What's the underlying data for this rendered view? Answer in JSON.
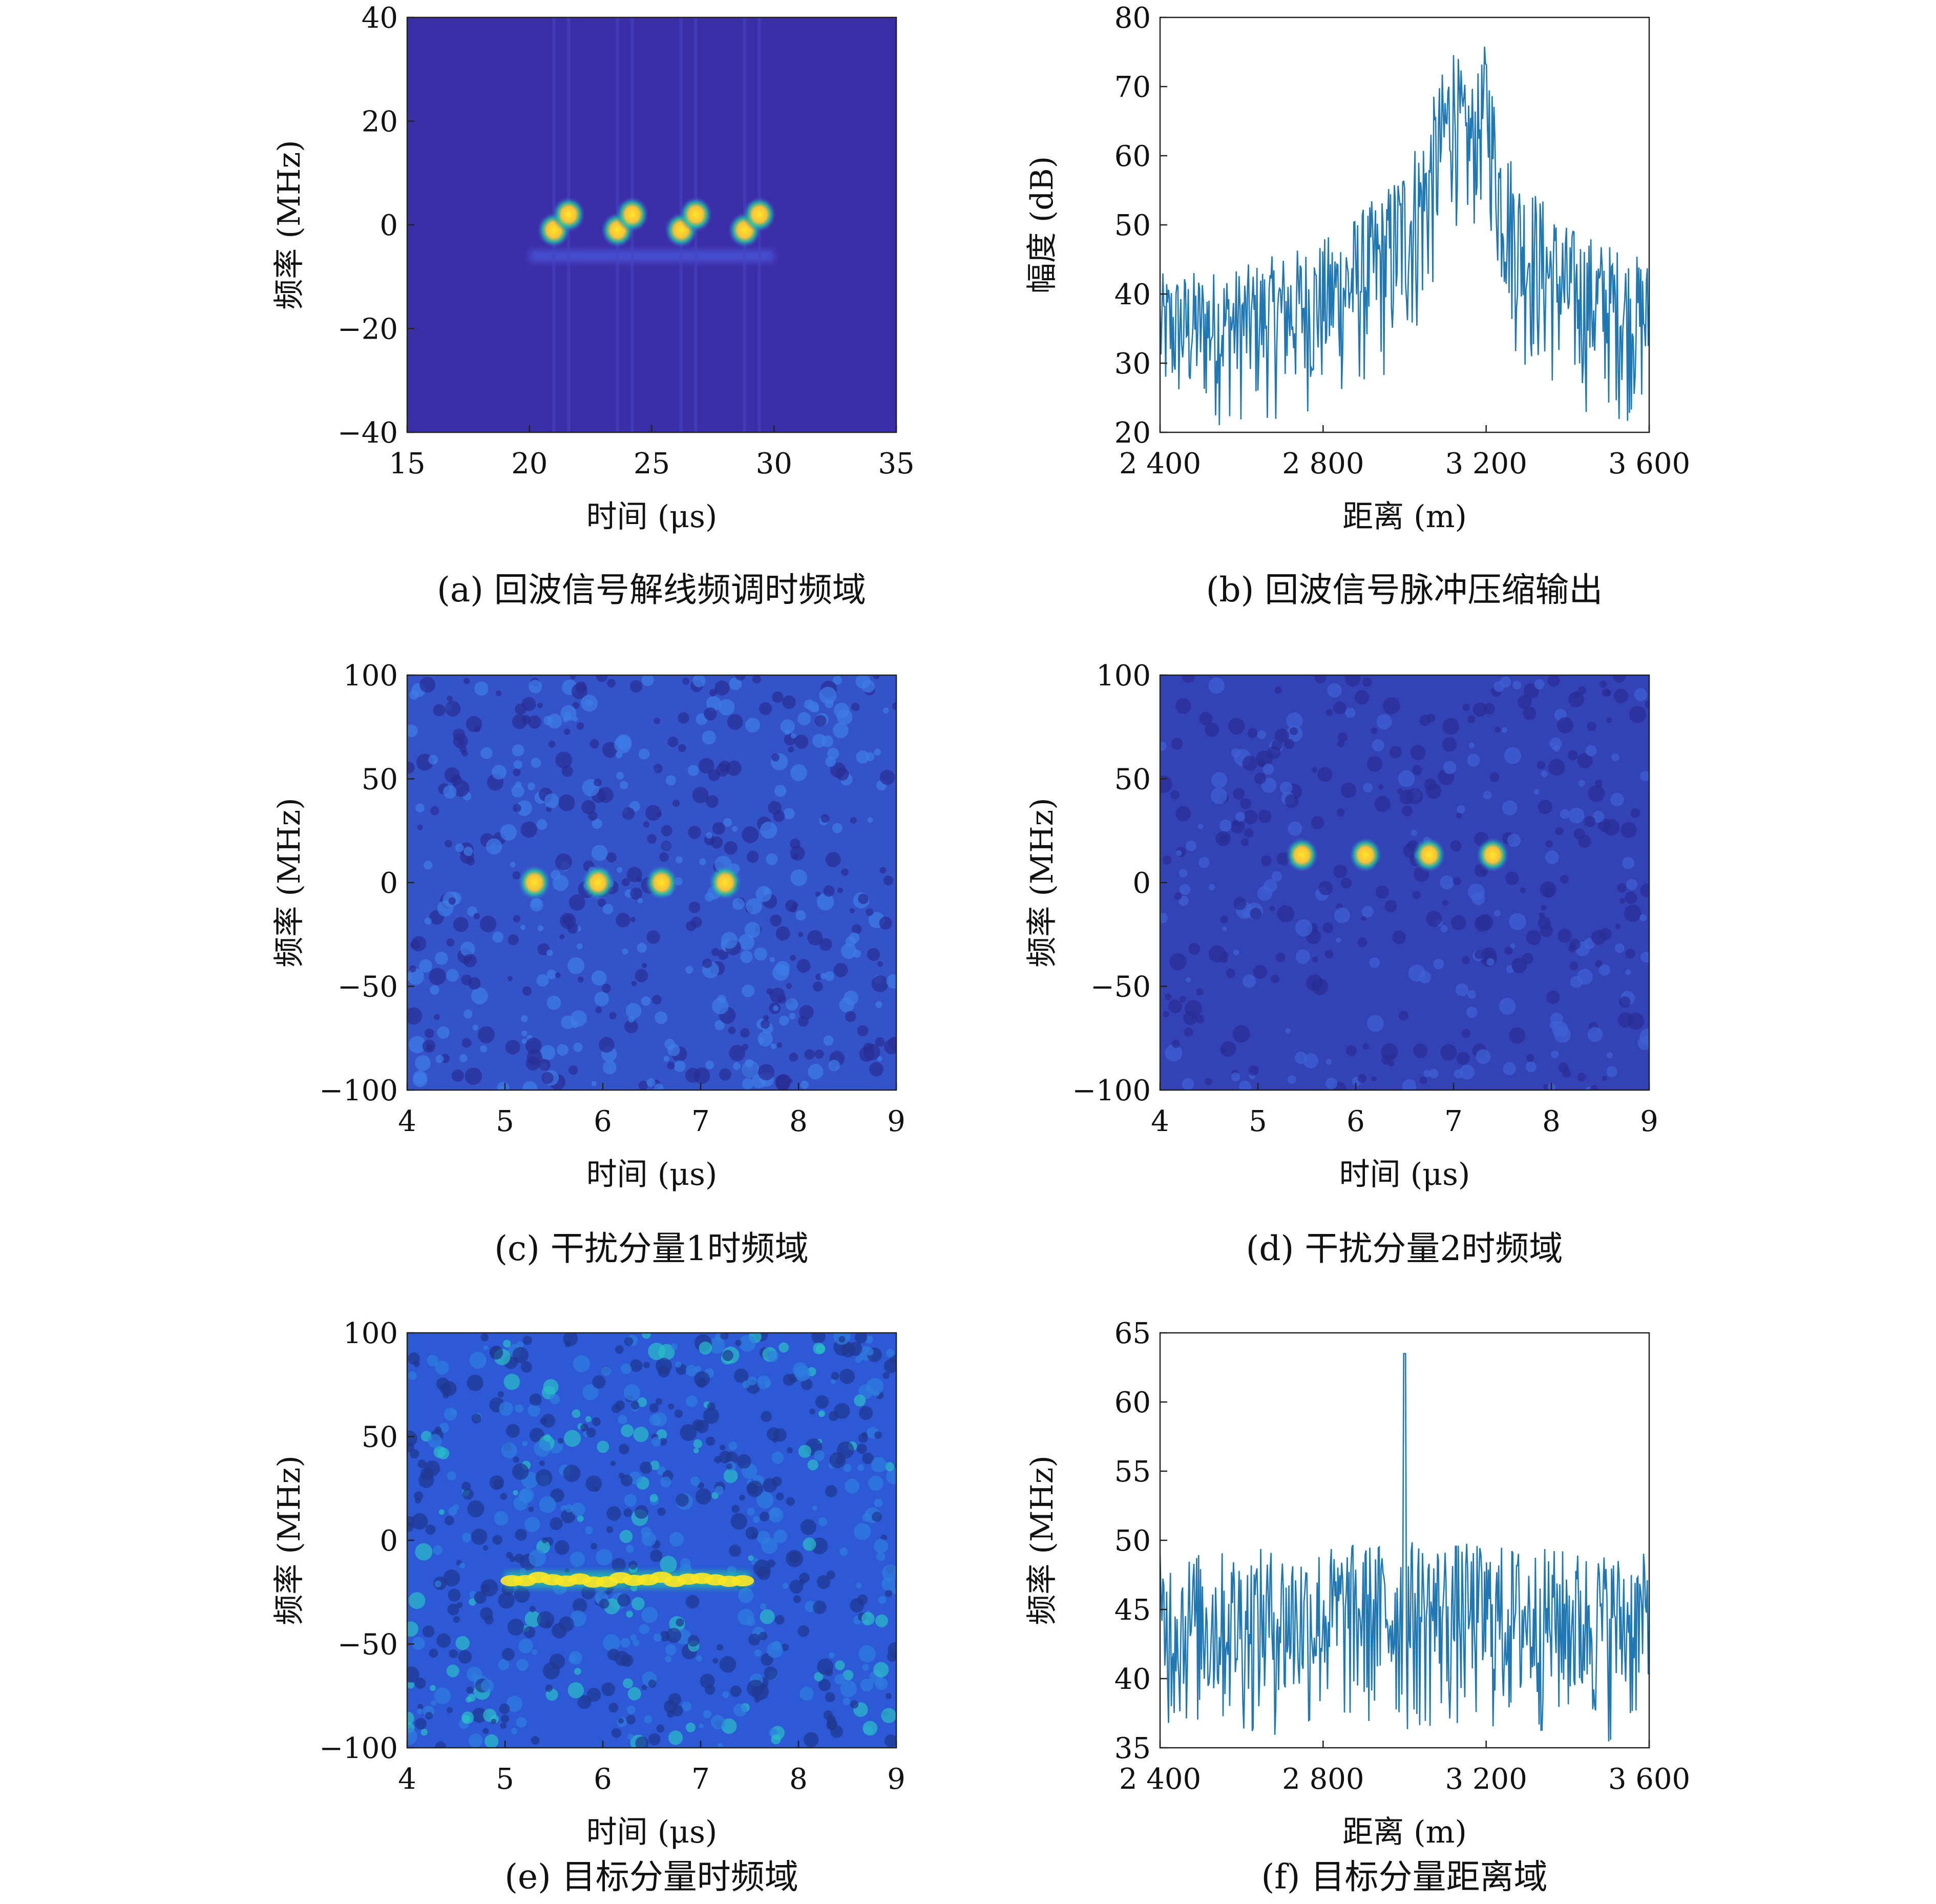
{
  "colors": {
    "tf_background": "#3b2fa8",
    "line": "#1f77b4",
    "peak": "#fde725",
    "mid": "#21c4a0"
  },
  "chart_data": [
    {
      "id": "a",
      "type": "heatmap",
      "caption": "(a) 回波信号解线频调时频域",
      "xlabel": "时间 (μs)",
      "ylabel": "频率 (MHz)",
      "xlim": [
        15,
        35
      ],
      "ylim": [
        -40,
        40
      ],
      "xticks": [
        "15",
        "20",
        "25",
        "30",
        "35"
      ],
      "yticks": [
        "−40",
        "−20",
        "0",
        "20",
        "40"
      ],
      "background": "uniform",
      "band": {
        "x": [
          20,
          30
        ],
        "y": -6
      },
      "spots": [
        {
          "x": 21.0,
          "y": -1
        },
        {
          "x": 21.6,
          "y": 2
        },
        {
          "x": 23.6,
          "y": -1
        },
        {
          "x": 24.2,
          "y": 2
        },
        {
          "x": 26.2,
          "y": -1
        },
        {
          "x": 26.8,
          "y": 2
        },
        {
          "x": 28.8,
          "y": -1
        },
        {
          "x": 29.4,
          "y": 2
        }
      ]
    },
    {
      "id": "b",
      "type": "line",
      "caption": "(b) 回波信号脉冲压缩输出",
      "xlabel": "距离 (m)",
      "ylabel": "幅度 (dB)",
      "xlim": [
        2400,
        3600
      ],
      "ylim": [
        20,
        80
      ],
      "xticks": [
        "2 400",
        "2 800",
        "3 200",
        "3 600"
      ],
      "yticks": [
        "20",
        "30",
        "40",
        "50",
        "60",
        "70",
        "80"
      ],
      "envelope": {
        "x": [
          2400,
          2600,
          2800,
          2950,
          3050,
          3120,
          3150,
          3180,
          3200,
          3230,
          3280,
          3400,
          3600
        ],
        "upper": [
          43,
          44,
          48,
          55,
          65,
          77,
          70,
          72,
          77,
          65,
          58,
          50,
          45
        ],
        "lower": [
          20,
          20,
          22,
          25,
          32,
          50,
          45,
          48,
          52,
          38,
          28,
          22,
          20
        ]
      }
    },
    {
      "id": "c",
      "type": "heatmap",
      "caption": "(c) 干扰分量1时频域",
      "xlabel": "时间 (μs)",
      "ylabel": "频率 (MHz)",
      "xlim": [
        4,
        9
      ],
      "ylim": [
        -110,
        100
      ],
      "xticks": [
        "4",
        "5",
        "6",
        "7",
        "8",
        "9"
      ],
      "yticks": [
        "−100",
        "−50",
        "0",
        "50",
        "100"
      ],
      "background": "noisy",
      "spots": [
        {
          "x": 5.3,
          "y": -5
        },
        {
          "x": 5.95,
          "y": -5
        },
        {
          "x": 6.6,
          "y": -5
        },
        {
          "x": 7.25,
          "y": -5
        }
      ]
    },
    {
      "id": "d",
      "type": "heatmap",
      "caption": "(d) 干扰分量2时频域",
      "xlabel": "时间 (μs)",
      "ylabel": "频率 (MHz)",
      "xlim": [
        4,
        9
      ],
      "ylim": [
        -110,
        100
      ],
      "xticks": [
        "4",
        "5",
        "6",
        "7",
        "8",
        "9"
      ],
      "yticks": [
        "−100",
        "−50",
        "0",
        "50",
        "100"
      ],
      "background": "faint",
      "spots": [
        {
          "x": 5.45,
          "y": 9
        },
        {
          "x": 6.1,
          "y": 9
        },
        {
          "x": 6.75,
          "y": 9
        },
        {
          "x": 7.4,
          "y": 9
        }
      ]
    },
    {
      "id": "e",
      "type": "heatmap",
      "caption": "(e) 目标分量时频域",
      "xlabel": "时间 (μs)",
      "ylabel": "频率 (MHz)",
      "xlim": [
        4,
        9
      ],
      "ylim": [
        -110,
        100
      ],
      "xticks": [
        "4",
        "5",
        "6",
        "7",
        "8",
        "9"
      ],
      "yticks": [
        "−100",
        "−50",
        "0",
        "50",
        "100"
      ],
      "background": "noisy-strong",
      "line_segment": {
        "x": [
          5.0,
          7.5
        ],
        "y": -25
      }
    },
    {
      "id": "f",
      "type": "line",
      "caption": "(f) 目标分量距离域",
      "xlabel": "距离 (m)",
      "ylabel": "频率 (MHz)",
      "xlim": [
        2400,
        3600
      ],
      "ylim": [
        35,
        65
      ],
      "xticks": [
        "2 400",
        "2 800",
        "3 200",
        "3 600"
      ],
      "yticks": [
        "35",
        "40",
        "45",
        "50",
        "55",
        "60",
        "65"
      ],
      "envelope": {
        "x": [
          2400,
          3000,
          3060,
          3600
        ],
        "upper": [
          49,
          50,
          50,
          49
        ],
        "lower": [
          35,
          35,
          35,
          35
        ]
      },
      "peak": {
        "x": 3000,
        "y": 63.5
      }
    }
  ]
}
